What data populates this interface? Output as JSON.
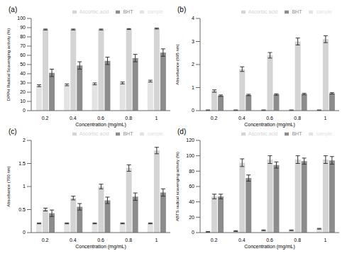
{
  "chart_data": [
    {
      "type": "bar",
      "title": "(a)",
      "x_label": "Concentration (mg/mL)",
      "y_label": "DPPH Radical Scavenging activity (%)",
      "categories": [
        "0.2",
        "0.4",
        "0.6",
        "0.8",
        "1"
      ],
      "ylim": [
        0,
        100
      ],
      "yticks": [
        0,
        10,
        20,
        30,
        40,
        50,
        60,
        70,
        80,
        90,
        100
      ],
      "grid": false,
      "legend": "top",
      "series": [
        {
          "name": "sample",
          "color": "#e3e3e3",
          "values": [
            27,
            28,
            29,
            30,
            32
          ],
          "errors": [
            1,
            1,
            1,
            1,
            1
          ]
        },
        {
          "name": "Ascorbic acid",
          "color": "#d4d4d4",
          "values": [
            88,
            88,
            88,
            88.5,
            89
          ],
          "errors": [
            0.5,
            0.5,
            0.5,
            0.5,
            0.5
          ]
        },
        {
          "name": "BHT",
          "color": "#8c8c8c",
          "values": [
            41,
            49,
            54,
            57,
            63
          ],
          "errors": [
            4,
            4,
            4,
            4,
            4
          ]
        }
      ]
    },
    {
      "type": "bar",
      "title": "(b)",
      "x_label": "Concentration (mg/mL)",
      "y_label": "Absorbance (695 nm)",
      "categories": [
        "0.2",
        "0.4",
        "0.6",
        "0.8",
        "1"
      ],
      "ylim": [
        0,
        4
      ],
      "yticks": [
        0,
        1,
        2,
        3,
        4
      ],
      "grid": false,
      "legend": "top",
      "series": [
        {
          "name": "sample",
          "color": "#e3e3e3",
          "values": [
            0.02,
            0.02,
            0.02,
            0.02,
            0.02
          ],
          "errors": [
            0.01,
            0.01,
            0.01,
            0.01,
            0.01
          ]
        },
        {
          "name": "Ascorbic acid",
          "color": "#d4d4d4",
          "values": [
            0.85,
            1.8,
            2.4,
            3.0,
            3.1
          ],
          "errors": [
            0.05,
            0.1,
            0.12,
            0.15,
            0.15
          ]
        },
        {
          "name": "BHT",
          "color": "#8c8c8c",
          "values": [
            0.65,
            0.68,
            0.7,
            0.72,
            0.75
          ],
          "errors": [
            0.03,
            0.03,
            0.03,
            0.03,
            0.03
          ]
        }
      ]
    },
    {
      "type": "bar",
      "title": "(c)",
      "x_label": "Concentration (mg/mL)",
      "y_label": "Absorbance (700 nm)",
      "categories": [
        "0.2",
        "0.4",
        "0.6",
        "0.8",
        "1"
      ],
      "ylim": [
        0,
        2
      ],
      "yticks": [
        0,
        0.5,
        1,
        1.5,
        2
      ],
      "grid": false,
      "legend": "top",
      "series": [
        {
          "name": "sample",
          "color": "#e3e3e3",
          "values": [
            0.2,
            0.2,
            0.2,
            0.2,
            0.2
          ],
          "errors": [
            0.01,
            0.01,
            0.01,
            0.01,
            0.01
          ]
        },
        {
          "name": "Ascorbic acid",
          "color": "#d4d4d4",
          "values": [
            0.5,
            0.75,
            1.0,
            1.4,
            1.78
          ],
          "errors": [
            0.03,
            0.04,
            0.05,
            0.07,
            0.07
          ]
        },
        {
          "name": "BHT",
          "color": "#8c8c8c",
          "values": [
            0.42,
            0.56,
            0.7,
            0.78,
            0.87
          ],
          "errors": [
            0.07,
            0.07,
            0.07,
            0.08,
            0.08
          ]
        }
      ]
    },
    {
      "type": "bar",
      "title": "(d)",
      "x_label": "Concentration (mg/mL)",
      "y_label": "ABTS radical scavenging activity (%)",
      "categories": [
        "0.2",
        "0.4",
        "0.6",
        "0.8",
        "1"
      ],
      "ylim": [
        0,
        120
      ],
      "yticks": [
        0,
        20,
        40,
        60,
        80,
        100,
        120
      ],
      "grid": false,
      "legend": "top",
      "series": [
        {
          "name": "sample",
          "color": "#e3e3e3",
          "values": [
            1,
            2,
            3,
            3,
            5
          ],
          "errors": [
            0.5,
            0.5,
            0.5,
            0.5,
            0.5
          ]
        },
        {
          "name": "Ascorbic acid",
          "color": "#d4d4d4",
          "values": [
            47,
            91,
            95,
            95,
            95
          ],
          "errors": [
            3,
            5,
            5,
            5,
            5
          ]
        },
        {
          "name": "BHT",
          "color": "#8c8c8c",
          "values": [
            47,
            71,
            88,
            93,
            94
          ],
          "errors": [
            3,
            4,
            4,
            4,
            5
          ]
        }
      ]
    }
  ]
}
